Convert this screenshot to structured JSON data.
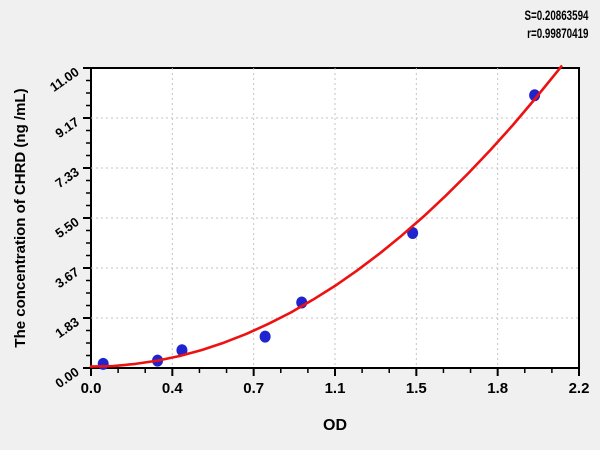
{
  "chart_data": {
    "type": "scatter",
    "title": "",
    "xlabel": "OD",
    "ylabel": "The concentration of CHRD (ng /mL)",
    "xlim": [
      0,
      2.2
    ],
    "ylim": [
      0,
      11
    ],
    "x_tick_labels": [
      "0.0",
      "0.4",
      "0.7",
      "1.1",
      "1.5",
      "1.8",
      "2.2"
    ],
    "y_tick_labels": [
      "0.00",
      "1.83",
      "3.67",
      "5.50",
      "7.33",
      "9.17",
      "11.00"
    ],
    "grid": true,
    "legend_position": "none",
    "annotations": {
      "s_text": "S=0.20863594",
      "r_text": "r=0.99870419"
    },
    "series": [
      {
        "name": "standard-points",
        "type": "scatter",
        "color": "#1f24cf",
        "x": [
          0.055,
          0.3,
          0.41,
          0.785,
          0.95,
          1.45,
          2.0
        ],
        "y": [
          0.15,
          0.27,
          0.65,
          1.15,
          2.4,
          4.95,
          10.0
        ]
      },
      {
        "name": "fitted-curve",
        "type": "line",
        "color": "#ee1111",
        "x": [
          0,
          0.1,
          0.2,
          0.3,
          0.4,
          0.5,
          0.6,
          0.7,
          0.8,
          0.9,
          1.0,
          1.1,
          1.2,
          1.3,
          1.4,
          1.5,
          1.6,
          1.7,
          1.8,
          1.9,
          2.0,
          2.1,
          2.12
        ],
        "y": [
          0.05,
          0.07,
          0.15,
          0.27,
          0.44,
          0.66,
          0.93,
          1.25,
          1.62,
          2.03,
          2.5,
          3.01,
          3.58,
          4.19,
          4.85,
          5.56,
          6.32,
          7.13,
          7.99,
          8.89,
          9.85,
          10.85,
          11.06
        ]
      }
    ]
  },
  "colors": {
    "page_background": "#f0f0f0",
    "plot_background": "#ffffff",
    "frame": "#000000",
    "gridline": "#c3c3c3",
    "point": "#1f24cf",
    "curve": "#ee1111"
  }
}
